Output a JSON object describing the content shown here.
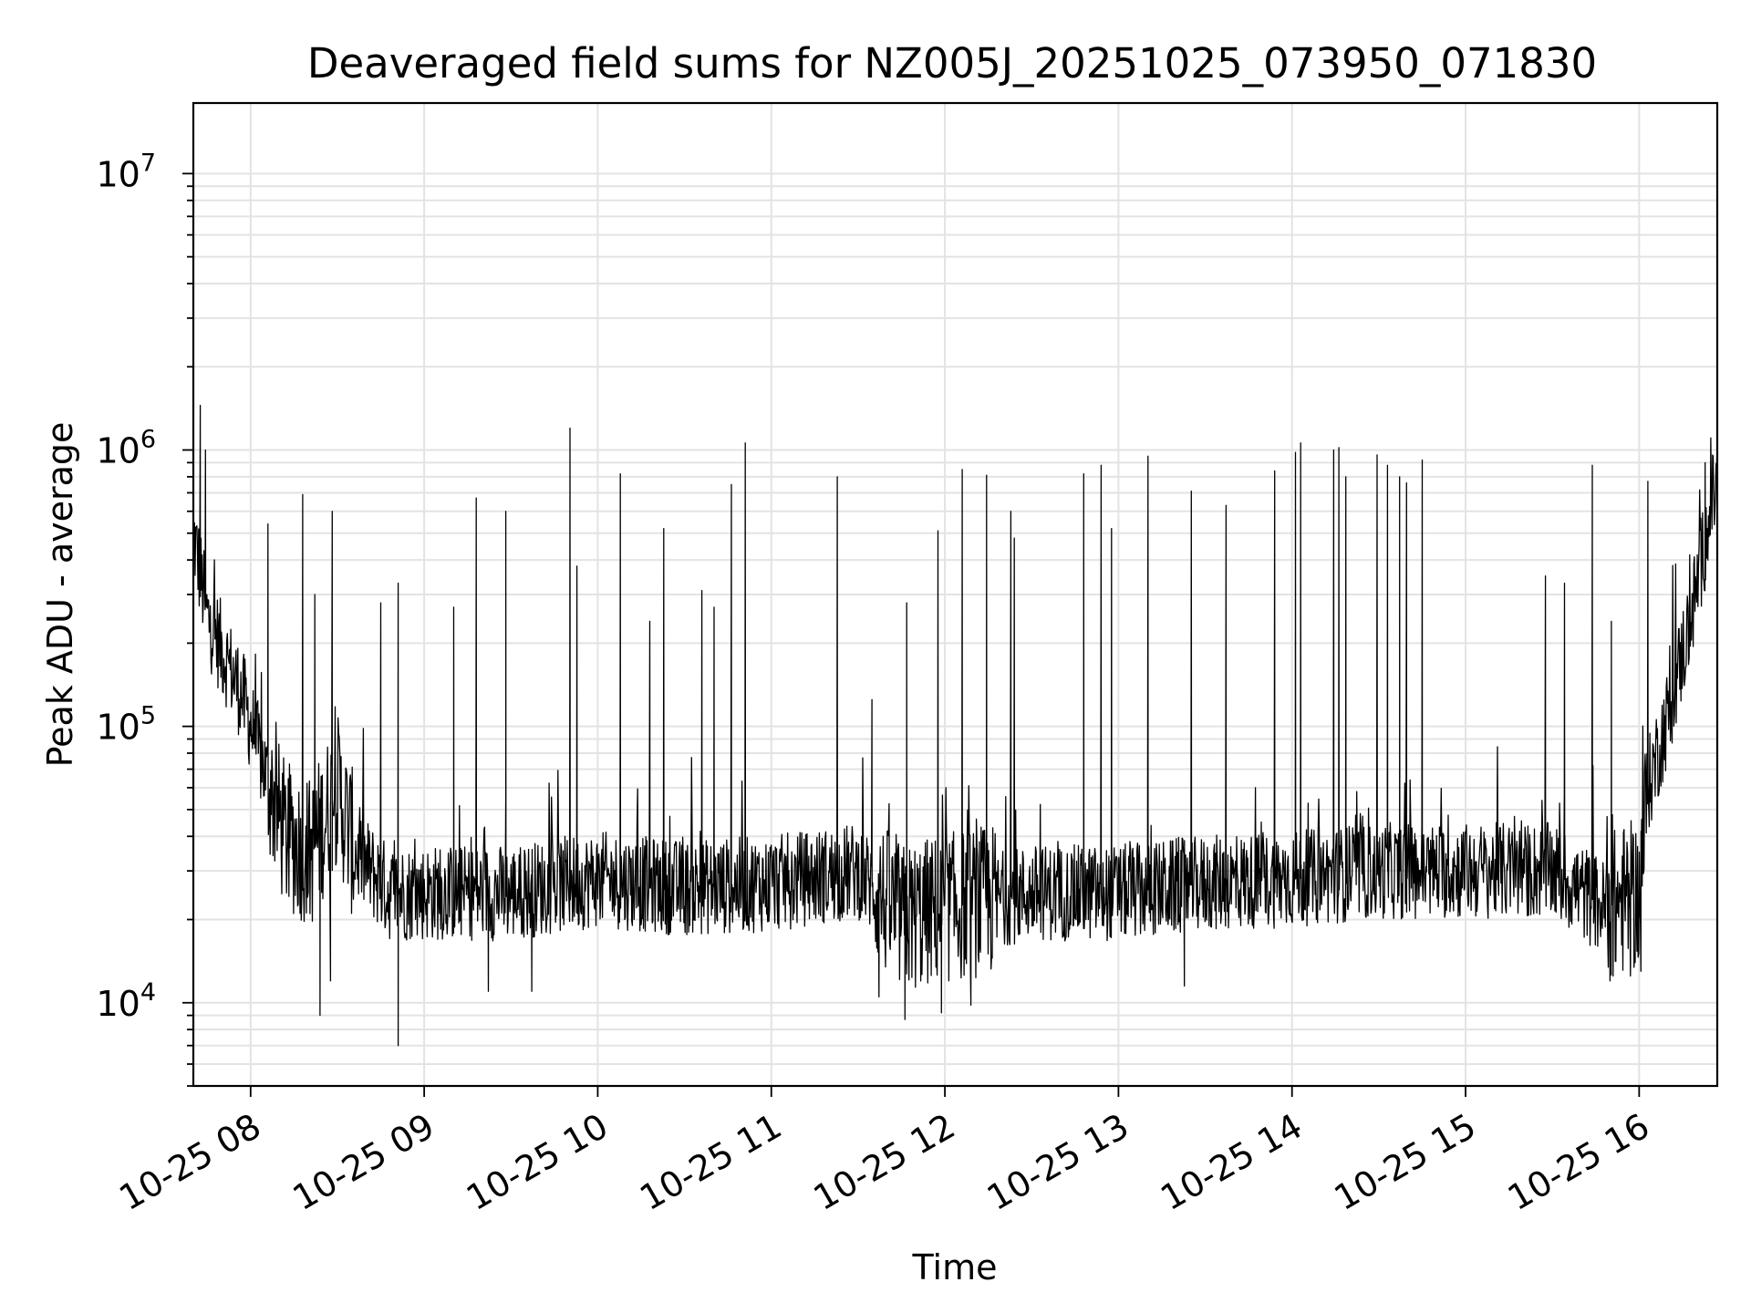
{
  "chart_data": {
    "type": "line",
    "title": "Deaveraged field sums for NZ005J_20251025_073950_071830",
    "xlabel": "Time",
    "ylabel": "Peak ADU - average",
    "yscale": "log",
    "ylim": [
      5000,
      18000000
    ],
    "xlim_hours": [
      7.67,
      16.45
    ],
    "grid": true,
    "line_color": "#000000",
    "x_ticks": [
      {
        "hour": 8,
        "label": "10-25 08"
      },
      {
        "hour": 9,
        "label": "10-25 09"
      },
      {
        "hour": 10,
        "label": "10-25 10"
      },
      {
        "hour": 11,
        "label": "10-25 11"
      },
      {
        "hour": 12,
        "label": "10-25 12"
      },
      {
        "hour": 13,
        "label": "10-25 13"
      },
      {
        "hour": 14,
        "label": "10-25 14"
      },
      {
        "hour": 15,
        "label": "10-25 15"
      },
      {
        "hour": 16,
        "label": "10-25 16"
      }
    ],
    "y_ticks": [
      {
        "value": 10000,
        "base": "10",
        "exp": "4"
      },
      {
        "value": 100000,
        "base": "10",
        "exp": "5"
      },
      {
        "value": 1000000,
        "base": "10",
        "exp": "6"
      },
      {
        "value": 10000000,
        "base": "10",
        "exp": "7"
      }
    ],
    "series": [
      {
        "name": "deaveraged field sums",
        "baseline_x": [
          7.67,
          7.75,
          7.85,
          7.95,
          8.05,
          8.2,
          8.35,
          8.5,
          8.6,
          8.8,
          9.0,
          9.5,
          10.0,
          10.5,
          11.0,
          11.5,
          11.75,
          12.0,
          12.5,
          13.0,
          13.5,
          14.0,
          14.5,
          15.0,
          15.5,
          15.8,
          16.0,
          16.05,
          16.15,
          16.3,
          16.45
        ],
        "baseline_y": [
          500000,
          250000,
          180000,
          130000,
          80000,
          40000,
          35000,
          60000,
          35000,
          25000,
          25000,
          25000,
          28000,
          26000,
          27000,
          30000,
          20000,
          22000,
          25000,
          25000,
          27000,
          28000,
          30000,
          30000,
          30000,
          22000,
          25000,
          60000,
          100000,
          250000,
          800000
        ],
        "spikes": [
          {
            "x": 7.71,
            "y": 1450000
          },
          {
            "x": 7.74,
            "y": 1000000
          },
          {
            "x": 8.1,
            "y": 540000
          },
          {
            "x": 8.3,
            "y": 690000
          },
          {
            "x": 8.37,
            "y": 300000
          },
          {
            "x": 8.47,
            "y": 600000
          },
          {
            "x": 8.75,
            "y": 280000
          },
          {
            "x": 8.85,
            "y": 330000
          },
          {
            "x": 9.17,
            "y": 270000
          },
          {
            "x": 9.3,
            "y": 670000
          },
          {
            "x": 9.47,
            "y": 600000
          },
          {
            "x": 9.84,
            "y": 1200000
          },
          {
            "x": 9.88,
            "y": 380000
          },
          {
            "x": 10.13,
            "y": 820000
          },
          {
            "x": 10.3,
            "y": 240000
          },
          {
            "x": 10.38,
            "y": 520000
          },
          {
            "x": 10.6,
            "y": 310000
          },
          {
            "x": 10.67,
            "y": 270000
          },
          {
            "x": 10.77,
            "y": 750000
          },
          {
            "x": 10.85,
            "y": 1060000
          },
          {
            "x": 11.38,
            "y": 800000
          },
          {
            "x": 11.58,
            "y": 125000
          },
          {
            "x": 11.78,
            "y": 280000
          },
          {
            "x": 11.96,
            "y": 510000
          },
          {
            "x": 12.1,
            "y": 850000
          },
          {
            "x": 12.24,
            "y": 810000
          },
          {
            "x": 12.38,
            "y": 600000
          },
          {
            "x": 12.4,
            "y": 480000
          },
          {
            "x": 12.8,
            "y": 820000
          },
          {
            "x": 12.9,
            "y": 880000
          },
          {
            "x": 12.96,
            "y": 520000
          },
          {
            "x": 13.17,
            "y": 950000
          },
          {
            "x": 13.42,
            "y": 710000
          },
          {
            "x": 13.62,
            "y": 630000
          },
          {
            "x": 13.9,
            "y": 840000
          },
          {
            "x": 14.02,
            "y": 980000
          },
          {
            "x": 14.05,
            "y": 1060000
          },
          {
            "x": 14.24,
            "y": 1000000
          },
          {
            "x": 14.27,
            "y": 1020000
          },
          {
            "x": 14.31,
            "y": 800000
          },
          {
            "x": 14.49,
            "y": 960000
          },
          {
            "x": 14.55,
            "y": 880000
          },
          {
            "x": 14.62,
            "y": 800000
          },
          {
            "x": 14.66,
            "y": 760000
          },
          {
            "x": 14.75,
            "y": 920000
          },
          {
            "x": 15.46,
            "y": 350000
          },
          {
            "x": 15.57,
            "y": 330000
          },
          {
            "x": 15.73,
            "y": 880000
          },
          {
            "x": 15.84,
            "y": 240000
          },
          {
            "x": 16.05,
            "y": 770000
          },
          {
            "x": 16.38,
            "y": 900000
          }
        ],
        "dips": [
          {
            "x": 8.4,
            "y": 9000
          },
          {
            "x": 8.46,
            "y": 12000
          },
          {
            "x": 8.85,
            "y": 7000
          },
          {
            "x": 9.37,
            "y": 11000
          },
          {
            "x": 9.62,
            "y": 11000
          },
          {
            "x": 11.62,
            "y": 10500
          },
          {
            "x": 11.77,
            "y": 8700
          },
          {
            "x": 11.98,
            "y": 9200
          },
          {
            "x": 12.15,
            "y": 9800
          },
          {
            "x": 13.38,
            "y": 11500
          },
          {
            "x": 15.85,
            "y": 12500
          },
          {
            "x": 15.95,
            "y": 12500
          },
          {
            "x": 16.01,
            "y": 13000
          }
        ]
      }
    ]
  }
}
